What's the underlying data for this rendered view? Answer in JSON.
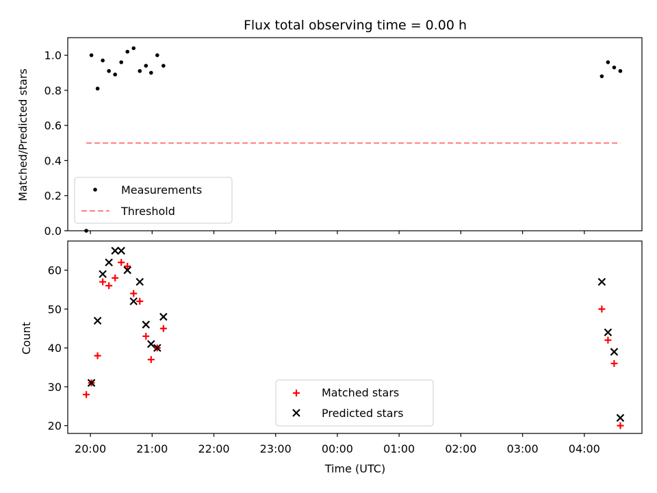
{
  "chart_data": [
    {
      "type": "scatter",
      "title": "Flux total observing time = 0.00 h",
      "xlabel": "",
      "ylabel": "Matched/Predicted stars",
      "ylim": [
        0.0,
        1.1
      ],
      "xlim": [
        "19:38",
        "04:56"
      ],
      "yticks": [
        "0.0",
        "0.2",
        "0.4",
        "0.6",
        "0.8",
        "1.0"
      ],
      "grid": false,
      "legend_position": "lower-left",
      "series": [
        {
          "name": "Measurements",
          "marker": "dot",
          "color": "#000000",
          "x": [
            "19:56",
            "20:01",
            "20:07",
            "20:12",
            "20:18",
            "20:24",
            "20:30",
            "20:36",
            "20:42",
            "20:48",
            "20:54",
            "20:59",
            "21:05",
            "21:11",
            "04:17",
            "04:23",
            "04:29",
            "04:35"
          ],
          "y": [
            0.0,
            1.0,
            0.81,
            0.97,
            0.91,
            0.89,
            0.96,
            1.02,
            1.04,
            0.91,
            0.94,
            0.9,
            1.0,
            0.94,
            0.88,
            0.96,
            0.93,
            0.91
          ]
        },
        {
          "name": "Threshold",
          "style": "dashed",
          "color": "#ff7f7f",
          "x": [
            "19:56",
            "04:35"
          ],
          "y": [
            0.5,
            0.5
          ]
        }
      ]
    },
    {
      "type": "scatter",
      "title": "",
      "xlabel": "Time (UTC)",
      "ylabel": "Count",
      "ylim": [
        18,
        67.5
      ],
      "xlim": [
        "19:38",
        "04:56"
      ],
      "xticks": [
        "20:00",
        "21:00",
        "22:00",
        "23:00",
        "00:00",
        "01:00",
        "02:00",
        "03:00",
        "04:00"
      ],
      "yticks": [
        "20",
        "30",
        "40",
        "50",
        "60"
      ],
      "grid": false,
      "legend_position": "lower-center",
      "series": [
        {
          "name": "Matched stars",
          "marker": "plus",
          "color": "#ff0000",
          "x": [
            "19:56",
            "20:01",
            "20:07",
            "20:12",
            "20:18",
            "20:24",
            "20:30",
            "20:36",
            "20:42",
            "20:48",
            "20:54",
            "20:59",
            "21:05",
            "21:11",
            "04:17",
            "04:23",
            "04:29",
            "04:35"
          ],
          "y": [
            28,
            31,
            38,
            57,
            56,
            58,
            62,
            61,
            54,
            52,
            43,
            37,
            40,
            45,
            50,
            42,
            36,
            20
          ]
        },
        {
          "name": "Predicted stars",
          "marker": "x",
          "color": "#000000",
          "x": [
            "20:01",
            "20:07",
            "20:12",
            "20:18",
            "20:24",
            "20:30",
            "20:36",
            "20:42",
            "20:48",
            "20:54",
            "20:59",
            "21:05",
            "21:11",
            "04:17",
            "04:23",
            "04:29",
            "04:35"
          ],
          "y": [
            31,
            47,
            59,
            62,
            65,
            65,
            60,
            52,
            57,
            46,
            41,
            40,
            48,
            57,
            44,
            39,
            22
          ]
        }
      ]
    }
  ]
}
